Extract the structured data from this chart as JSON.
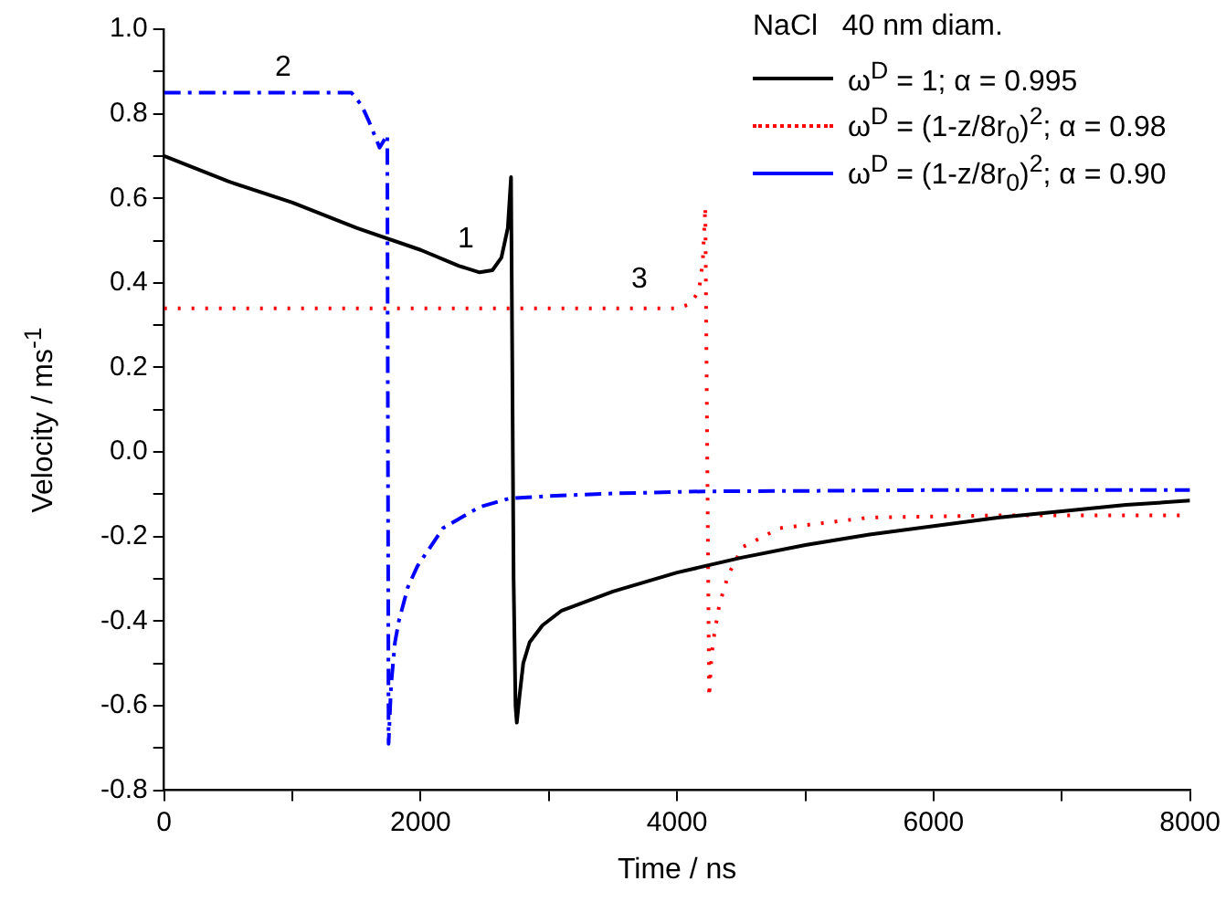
{
  "chart_data": {
    "type": "line",
    "xlabel": "Time / ns",
    "ylabel": "Velocity / ms$^{-1}$",
    "legend_title": "NaCl   40 nm diam.",
    "legend": "top right",
    "grid": false,
    "marker": "none",
    "xlim": [
      0,
      8000
    ],
    "ylim": [
      -0.8,
      1.0
    ],
    "xticks": [
      0,
      {
        "value": 1000,
        "label": null
      },
      2000,
      {
        "value": 3000,
        "label": null
      },
      4000,
      {
        "value": 5000,
        "label": null
      },
      6000,
      {
        "value": 7000,
        "label": null
      },
      8000
    ],
    "yticks": [
      {
        "value": -0.8,
        "label": "-0.8"
      },
      {
        "value": -0.7,
        "label": null
      },
      {
        "value": -0.6,
        "label": "-0.6"
      },
      {
        "value": -0.5,
        "label": null
      },
      {
        "value": -0.4,
        "label": "-0.4"
      },
      {
        "value": -0.3,
        "label": null
      },
      {
        "value": -0.2,
        "label": "-0.2"
      },
      {
        "value": -0.1,
        "label": null
      },
      {
        "value": 0,
        "label": "0.0"
      },
      {
        "value": 0.1,
        "label": null
      },
      {
        "value": 0.2,
        "label": "0.2"
      },
      {
        "value": 0.3,
        "label": null
      },
      {
        "value": 0.4,
        "label": "0.4"
      },
      {
        "value": 0.5,
        "label": null
      },
      {
        "value": 0.6,
        "label": "0.6"
      },
      {
        "value": 0.7,
        "label": null
      },
      {
        "value": 0.8,
        "label": "0.8"
      },
      {
        "value": 0.9,
        "label": null
      },
      {
        "value": 1.0,
        "label": "1.0"
      }
    ],
    "series": [
      {
        "name": "ω$^{D}$ = 1; α = 0.995",
        "color": "#000000",
        "line_style": "solid",
        "x": [
          0,
          500,
          1000,
          1500,
          2000,
          2300,
          2460,
          2560,
          2630,
          2680,
          2705,
          2715,
          2725,
          2740,
          2750,
          2770,
          2800,
          2850,
          2950,
          3100,
          3500,
          4000,
          4500,
          5000,
          5500,
          6000,
          6500,
          7000,
          7500,
          8000
        ],
        "values": [
          0.7,
          0.64,
          0.59,
          0.53,
          0.478,
          0.44,
          0.425,
          0.43,
          0.46,
          0.53,
          0.65,
          0.2,
          -0.3,
          -0.6,
          -0.64,
          -0.58,
          -0.5,
          -0.45,
          -0.41,
          -0.375,
          -0.33,
          -0.285,
          -0.25,
          -0.22,
          -0.195,
          -0.175,
          -0.155,
          -0.14,
          -0.125,
          -0.115
        ]
      },
      {
        "name": "ω$^{D}$ = (1-z/8r$_{0}$)$^{2}$; α = 0.98",
        "color": "#ff0000",
        "line_style": "dotted",
        "x": [
          0,
          2000,
          4000,
          4100,
          4170,
          4200,
          4220,
          4235,
          4250,
          4265,
          4280,
          4330,
          4400,
          4510,
          4800,
          5500,
          6500,
          8000
        ],
        "values": [
          0.34,
          0.34,
          0.34,
          0.35,
          0.38,
          0.45,
          0.58,
          0.0,
          -0.58,
          -0.5,
          -0.45,
          -0.36,
          -0.29,
          -0.225,
          -0.18,
          -0.155,
          -0.15,
          -0.15
        ]
      },
      {
        "name": "ω$^{D}$ = (1-z/8r$_{0}$)$^{2}$; α = 0.90",
        "color": "#0000ff",
        "line_style": "dashed",
        "x": [
          0,
          1000,
          1460,
          1540,
          1600,
          1680,
          1720,
          1740,
          1745,
          1750,
          1770,
          1800,
          1830,
          1900,
          1975,
          2175,
          2460,
          2690,
          3000,
          3500,
          4220,
          5000,
          6000,
          7000,
          8000
        ],
        "values": [
          0.85,
          0.85,
          0.85,
          0.82,
          0.78,
          0.72,
          0.74,
          0.75,
          0.0,
          -0.69,
          -0.55,
          -0.45,
          -0.4,
          -0.32,
          -0.27,
          -0.18,
          -0.13,
          -0.11,
          -0.104,
          -0.098,
          -0.093,
          -0.092,
          -0.09,
          -0.09,
          -0.09
        ]
      }
    ],
    "annotations": [
      "1",
      "2",
      "3"
    ]
  }
}
